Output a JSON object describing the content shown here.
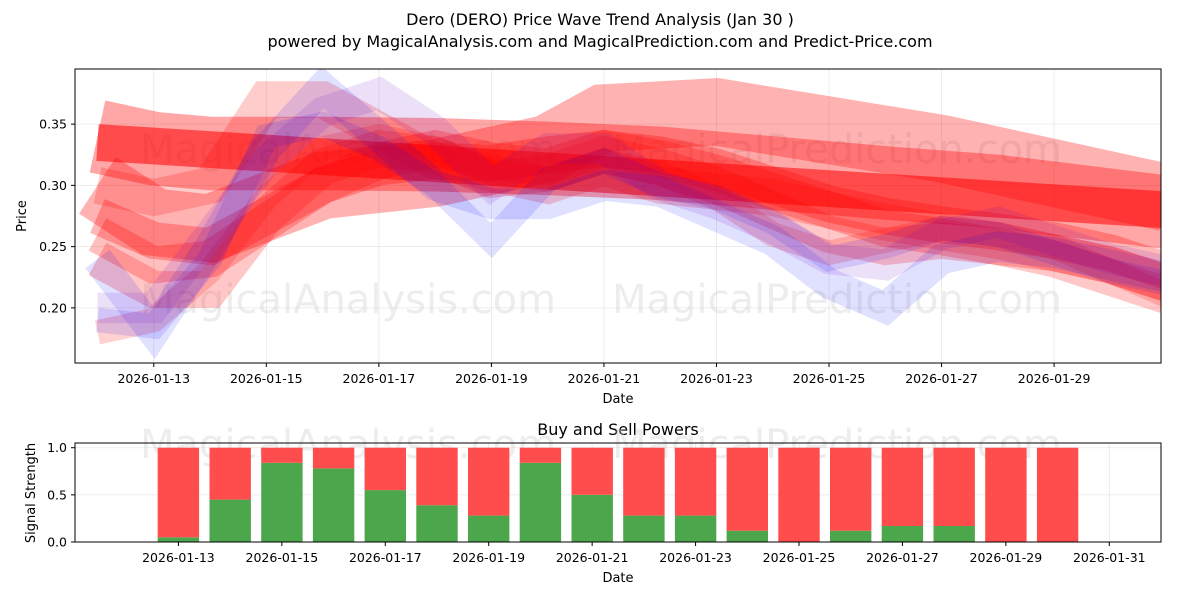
{
  "chart_data": [
    {
      "type": "line",
      "title": "Dero (DERO) Price Wave Trend Analysis (Jan 30 )",
      "subtitle": "powered by MagicalAnalysis.com and MagicalPrediction.com and Predict-Price.com",
      "xlabel": "Date",
      "ylabel": "Price",
      "x_range_days": [
        11.6,
        30.9
      ],
      "ylim": [
        0.155,
        0.395
      ],
      "x_ticks": [
        {
          "day": 13,
          "label": "2026-01-13"
        },
        {
          "day": 15,
          "label": "2026-01-15"
        },
        {
          "day": 17,
          "label": "2026-01-17"
        },
        {
          "day": 19,
          "label": "2026-01-19"
        },
        {
          "day": 21,
          "label": "2026-01-21"
        },
        {
          "day": 23,
          "label": "2026-01-23"
        },
        {
          "day": 25,
          "label": "2026-01-25"
        },
        {
          "day": 27,
          "label": "2026-01-27"
        },
        {
          "day": 29,
          "label": "2026-01-29"
        }
      ],
      "y_ticks": [
        {
          "value": 0.2,
          "label": "0.20"
        },
        {
          "value": 0.25,
          "label": "0.25"
        },
        {
          "value": 0.3,
          "label": "0.30"
        },
        {
          "value": 0.35,
          "label": "0.35"
        }
      ],
      "grid": true,
      "watermarks": [
        "MagicalAnalysis.com",
        "MagicalPrediction.com"
      ],
      "series": [
        {
          "name": "trend-band-1",
          "color": "#ff0000",
          "opacity": 0.55,
          "width": 0.03,
          "x": [
            12.0,
            31.0
          ],
          "y": [
            0.335,
            0.28
          ]
        },
        {
          "name": "trend-band-2",
          "color": "#ff0000",
          "opacity": 0.35,
          "width": 0.06,
          "x": [
            12.0,
            13.0,
            14.0,
            16.0,
            18.0,
            20.0,
            22.0,
            24.0,
            26.0,
            28.0,
            31.0
          ],
          "y": [
            0.34,
            0.33,
            0.326,
            0.326,
            0.325,
            0.322,
            0.318,
            0.31,
            0.302,
            0.295,
            0.278
          ]
        },
        {
          "name": "trend-band-3",
          "color": "#ff0000",
          "opacity": 0.3,
          "width": 0.055,
          "x": [
            12.0,
            13.0,
            14.0,
            16.0,
            18.0,
            20.0,
            21.0,
            23.0,
            25.0,
            27.0,
            29.0,
            31.0
          ],
          "y": [
            0.3,
            0.27,
            0.265,
            0.3,
            0.31,
            0.33,
            0.355,
            0.36,
            0.345,
            0.33,
            0.31,
            0.29
          ]
        },
        {
          "name": "trend-band-4",
          "color": "#ff0000",
          "opacity": 0.28,
          "width": 0.03,
          "x": [
            12.0,
            13.0,
            14.0,
            15.0,
            16.0,
            17.0,
            18.0,
            19.0,
            20.0,
            21.0,
            22.0,
            23.0,
            24.0,
            25.0,
            26.0,
            27.0,
            28.0,
            29.0,
            30.0,
            31.0
          ],
          "y": [
            0.275,
            0.255,
            0.25,
            0.275,
            0.3,
            0.315,
            0.32,
            0.318,
            0.325,
            0.33,
            0.325,
            0.315,
            0.3,
            0.285,
            0.275,
            0.268,
            0.262,
            0.255,
            0.245,
            0.23
          ]
        },
        {
          "name": "trend-band-5",
          "color": "#ff0000",
          "opacity": 0.25,
          "width": 0.03,
          "x": [
            12.0,
            13.0,
            14.0,
            15.0,
            16.0,
            17.0,
            18.0,
            19.0,
            20.0,
            21.0,
            22.0,
            23.0,
            24.0,
            25.0,
            26.0,
            27.0,
            28.0,
            29.0,
            30.0,
            31.0
          ],
          "y": [
            0.26,
            0.235,
            0.24,
            0.27,
            0.3,
            0.32,
            0.33,
            0.32,
            0.315,
            0.33,
            0.322,
            0.31,
            0.295,
            0.28,
            0.265,
            0.258,
            0.25,
            0.245,
            0.235,
            0.22
          ]
        },
        {
          "name": "trend-band-6",
          "color": "#ff0000",
          "opacity": 0.22,
          "width": 0.03,
          "x": [
            12.0,
            13.0,
            14.0,
            15.0,
            16.0,
            17.0,
            18.0,
            19.0,
            20.0,
            21.0,
            22.0,
            23.0,
            24.0,
            25.0,
            26.0,
            27.0,
            28.0,
            29.0,
            30.0,
            31.0
          ],
          "y": [
            0.24,
            0.215,
            0.215,
            0.275,
            0.315,
            0.33,
            0.325,
            0.305,
            0.31,
            0.325,
            0.315,
            0.3,
            0.28,
            0.26,
            0.25,
            0.255,
            0.25,
            0.24,
            0.225,
            0.21
          ]
        },
        {
          "name": "trend-band-7",
          "color": "#ff0000",
          "opacity": 0.18,
          "width": 0.02,
          "x": [
            12.0,
            13.0,
            14.0,
            15.0,
            16.0,
            17.0,
            18.0,
            19.0,
            20.0,
            21.0,
            22.0,
            23.0,
            24.0,
            25.0,
            26.0,
            27.0,
            28.0,
            29.0,
            30.0,
            31.0
          ],
          "y": [
            0.18,
            0.19,
            0.23,
            0.29,
            0.33,
            0.34,
            0.33,
            0.31,
            0.305,
            0.32,
            0.31,
            0.29,
            0.26,
            0.245,
            0.255,
            0.265,
            0.26,
            0.25,
            0.23,
            0.21
          ]
        },
        {
          "name": "trend-band-8",
          "color": "#ff0000",
          "opacity": 0.2,
          "width": 0.03,
          "x": [
            12.0,
            13.0,
            14.0,
            15.0,
            16.0,
            17.0,
            18.0,
            19.0,
            20.0,
            21.0,
            22.0,
            23.0,
            24.0,
            25.0,
            26.0,
            27.0,
            28.0,
            29.0,
            30.0,
            31.0
          ],
          "y": [
            0.3,
            0.29,
            0.3,
            0.37,
            0.37,
            0.345,
            0.32,
            0.31,
            0.3,
            0.315,
            0.3,
            0.295,
            0.29,
            0.28,
            0.27,
            0.262,
            0.255,
            0.245,
            0.235,
            0.22
          ]
        },
        {
          "name": "wave-band-1",
          "color": "#0000ff",
          "opacity": 0.12,
          "width": 0.02,
          "x": [
            12.0,
            13.0,
            14.0,
            15.0,
            16.0,
            17.0,
            18.0,
            19.0,
            20.0,
            21.0,
            22.0,
            23.0,
            24.0,
            25.0,
            26.0,
            27.0,
            28.0,
            29.0,
            30.0,
            31.0
          ],
          "y": [
            0.19,
            0.185,
            0.24,
            0.34,
            0.35,
            0.33,
            0.3,
            0.255,
            0.305,
            0.32,
            0.3,
            0.29,
            0.27,
            0.24,
            0.25,
            0.265,
            0.26,
            0.245,
            0.23,
            0.22
          ]
        },
        {
          "name": "wave-band-2",
          "color": "#0000ff",
          "opacity": 0.12,
          "width": 0.025,
          "x": [
            12.0,
            13.0,
            14.0,
            15.0,
            16.0,
            17.0,
            18.0,
            19.0,
            20.0,
            21.0,
            22.0,
            23.0,
            24.0,
            25.0,
            26.0,
            27.0,
            28.0,
            29.0,
            30.0,
            31.0
          ],
          "y": [
            0.24,
            0.18,
            0.25,
            0.33,
            0.38,
            0.34,
            0.3,
            0.285,
            0.285,
            0.3,
            0.295,
            0.275,
            0.255,
            0.22,
            0.2,
            0.24,
            0.25,
            0.245,
            0.235,
            0.225
          ]
        },
        {
          "name": "wave-band-3",
          "color": "#6600cc",
          "opacity": 0.12,
          "width": 0.025,
          "x": [
            12.0,
            13.0,
            14.0,
            15.0,
            16.0,
            17.0,
            18.0,
            19.0,
            20.0,
            21.0,
            22.0,
            23.0,
            24.0,
            25.0,
            26.0,
            27.0,
            28.0,
            29.0,
            30.0,
            31.0
          ],
          "y": [
            0.2,
            0.2,
            0.26,
            0.32,
            0.36,
            0.375,
            0.345,
            0.3,
            0.33,
            0.33,
            0.3,
            0.285,
            0.265,
            0.24,
            0.235,
            0.26,
            0.27,
            0.255,
            0.24,
            0.23
          ]
        }
      ]
    },
    {
      "type": "bar",
      "stacked": true,
      "title": "Buy and Sell Powers",
      "xlabel": "Date",
      "ylabel": "Signal Strength",
      "x_range_days": [
        11.0,
        32.0
      ],
      "ylim": [
        0.0,
        1.05
      ],
      "x_ticks": [
        {
          "day": 13,
          "label": "2026-01-13"
        },
        {
          "day": 15,
          "label": "2026-01-15"
        },
        {
          "day": 17,
          "label": "2026-01-17"
        },
        {
          "day": 19,
          "label": "2026-01-19"
        },
        {
          "day": 21,
          "label": "2026-01-21"
        },
        {
          "day": 23,
          "label": "2026-01-23"
        },
        {
          "day": 25,
          "label": "2026-01-25"
        },
        {
          "day": 27,
          "label": "2026-01-27"
        },
        {
          "day": 29,
          "label": "2026-01-29"
        },
        {
          "day": 31,
          "label": "2026-01-31"
        }
      ],
      "y_ticks": [
        {
          "value": 0.0,
          "label": "0.0"
        },
        {
          "value": 0.5,
          "label": "0.5"
        },
        {
          "value": 1.0,
          "label": "1.0"
        }
      ],
      "grid": true,
      "watermarks": [
        "MagicalAnalysis.com",
        "MagicalPrediction.com"
      ],
      "categories_days": [
        13,
        14,
        15,
        16,
        17,
        18,
        19,
        20,
        21,
        22,
        23,
        24,
        25,
        26,
        27,
        28,
        29,
        30
      ],
      "series": [
        {
          "name": "Buy",
          "color": "#4ca64c",
          "values": [
            0.05,
            0.45,
            0.84,
            0.78,
            0.55,
            0.39,
            0.28,
            0.84,
            0.5,
            0.28,
            0.28,
            0.12,
            0.0,
            0.12,
            0.17,
            0.17,
            0.0,
            0.0
          ]
        },
        {
          "name": "Sell",
          "color": "#ff4c4c",
          "values": [
            0.95,
            0.55,
            0.16,
            0.22,
            0.45,
            0.61,
            0.72,
            0.16,
            0.5,
            0.72,
            0.72,
            0.88,
            1.0,
            0.88,
            0.83,
            0.83,
            1.0,
            1.0
          ]
        }
      ]
    }
  ]
}
